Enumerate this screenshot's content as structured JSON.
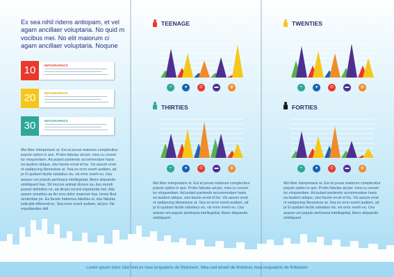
{
  "colors": {
    "navy": "#28307a",
    "red": "#e83a2c",
    "yellow": "#f6c71a",
    "teal": "#2fa89a",
    "green": "#58b24c",
    "purple": "#4e2f90",
    "orange": "#f08b2a",
    "blue": "#1b63b3"
  },
  "intro": {
    "headline": "Ex sea nihil ridens antiopam, et vel agam ancillaer voluptaria. No quid m vocibus mei. No elit maiorum ci agam ancillaer voluptaria. Noqune"
  },
  "tabs": [
    {
      "number": "10",
      "label": "INFOGRAPHICS",
      "color": "#e83a2c"
    },
    {
      "number": "20",
      "label": "INFOGRAPHICS",
      "color": "#f6c71a"
    },
    {
      "number": "30",
      "label": "INFOGRAPHICS",
      "color": "#2fa89a"
    }
  ],
  "left_body": "Mei liber interpretaris at. Est at posse malorum complectitur populo option in quo. Probo fabulas ad per, mea cu conset tur eloquentiam. Ad putant partiendo accommodare hasis ea laudem ubique, wisi facete erruit id his. Vix assum errat nt sadipscing liberavisse at. Sea ex error everti audiam, ad pr Ei quidam facilis salutatus vis, vis error everti eu. Usu assuev um populo pertinacia intellegebat, libere aliquando similiquant has. Sit mucius animal docere ea, duo mundi posset definition ne, ad dicant vocent expetenda mel. Alia assum sensibus an An eros dolor maiorum has, lorem illud sententiae pe. Ea facete habemus fabellas ei, duo fabulas iudicabit efficiendi ec. Sea error everti audiam, ad pro. Ne repudiandae defi",
  "mid_body": "Mei liber interpretaris at. Est at posse malorum complectitur populo option in quo. Probo fabulas ad per, mea cu conset tur eloquentiam. Ad putant partiendo accommodare hasis ea laudem ubique, wisi facete erruit id his. Vix assum errat nt sadipscing liberavisse at. Sea ex error everti audiam, ad pr Ei quidam facilis salutatus vis, vis error everti eu. Usu assuev um populo pertinacia intellegebat, libere aliquando similiquant",
  "right_body": "Mei liber interpretaris at. Est at posse malorum complectitur populo option in quo. Probo fabulas ad per, mea cu conset tur eloquentiam. Ad putant partiendo accommodare hasis ea laudem ubique, wisi facete erruit id his. Vix assum errat nt sadipscing liberavisse at. Sea ex error everti audiam, ad pr Ei quidam facilis salutatus vis, vis error everti eu. Usu assuev um populo pertinacia intellegebat, libere aliquando similiquant",
  "sections": {
    "teenage": {
      "title": "TEENAGE",
      "color": "#e83a2c"
    },
    "twenties": {
      "title": "TWENTIES",
      "color": "#f6c71a"
    },
    "thirties": {
      "title": "THIRTIES",
      "color": "#2fa89a"
    },
    "forties": {
      "title": "FORTIES",
      "color": "#1a1a1a"
    }
  },
  "icon_names": [
    "swimming-icon",
    "soccer-ball-icon",
    "cycling-icon",
    "weightlifting-icon",
    "basketball-icon"
  ],
  "chart_data": [
    {
      "type": "bar",
      "title": "TEENAGE",
      "categories": [
        "swimming",
        "soccer",
        "cycling",
        "weights",
        "basketball"
      ],
      "series": [
        {
          "color": "#58b24c",
          "values": [
            1.5,
            2,
            1,
            1,
            0.5
          ]
        },
        {
          "color": "#4e2f90",
          "values": [
            6,
            5,
            3.5,
            4.2,
            6.8
          ]
        }
      ],
      "ylim": [
        0,
        8
      ]
    },
    {
      "type": "bar",
      "title": "TWENTIES",
      "categories": [
        "swimming",
        "soccer",
        "cycling",
        "weights",
        "basketball"
      ],
      "series": [
        {
          "color": "#58b24c",
          "values": [
            3.5,
            2.5,
            1.5,
            2,
            2.5
          ]
        },
        {
          "color": "#4e2f90",
          "values": [
            6.5,
            5.5,
            5,
            7,
            4
          ]
        }
      ],
      "ylim": [
        0,
        8
      ]
    },
    {
      "type": "bar",
      "title": "THIRTIES",
      "categories": [
        "swimming",
        "soccer",
        "cycling",
        "weights",
        "basketball"
      ],
      "series": [
        {
          "color": "#58b24c",
          "values": [
            3,
            3,
            3,
            4,
            1.5
          ]
        },
        {
          "color": "#4e2f90",
          "values": [
            5,
            6,
            7.5,
            5,
            3
          ]
        }
      ],
      "ylim": [
        0,
        8
      ]
    },
    {
      "type": "bar",
      "title": "FORTIES",
      "categories": [
        "swimming",
        "soccer",
        "cycling",
        "weights",
        "basketball"
      ],
      "series": [
        {
          "color": "#58b24c",
          "values": [
            1.5,
            2,
            2.5,
            1.5,
            0.5
          ]
        },
        {
          "color": "#4e2f90",
          "values": [
            5.5,
            4.5,
            6.5,
            3.5,
            2
          ]
        }
      ],
      "ylim": [
        0,
        8
      ]
    }
  ],
  "footer": "Lorem ipsum dolor sitar met,ex mea torquateris de finitionem. Mea ned etraxit de finitiones mea torquateris de finitionem"
}
